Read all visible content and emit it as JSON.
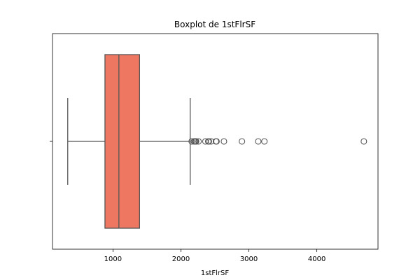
{
  "chart_data": {
    "type": "boxplot",
    "title": "Boxplot de 1stFlrSF",
    "xlabel": "1stFlrSF",
    "ylabel": "",
    "orientation": "horizontal",
    "xlim": [
      110,
      4900
    ],
    "x_ticks": [
      1000,
      2000,
      3000,
      4000
    ],
    "y_ticks": [
      ""
    ],
    "grid": false,
    "legend": "none",
    "box": {
      "whisker_low": 334,
      "q1": 882,
      "median": 1087,
      "q3": 1391,
      "whisker_high": 2136
    },
    "outliers": [
      2158,
      2192,
      2207,
      2217,
      2223,
      2259,
      2360,
      2402,
      2411,
      2444,
      2515,
      2524,
      2633,
      2898,
      3138,
      3228,
      4692
    ],
    "colors": {
      "box_fill": "#ee7761",
      "line": "#555555"
    }
  }
}
